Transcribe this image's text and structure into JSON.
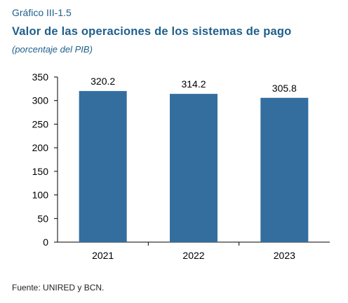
{
  "header": {
    "label": "Gráfico III-1.5",
    "title": "Valor de las operaciones de los sistemas de pago",
    "subtitle": "(porcentaje del PIB)"
  },
  "footer": {
    "source": "Fuente: UNIRED y BCN."
  },
  "colors": {
    "bar": "#336e9f",
    "title": "#1f5f8b",
    "axis": "#000000",
    "text": "#000000"
  },
  "chart_data": {
    "type": "bar",
    "title": "Valor de las operaciones de los sistemas de pago",
    "subtitle": "(porcentaje del PIB)",
    "categories": [
      "2021",
      "2022",
      "2023"
    ],
    "values": [
      320.2,
      314.2,
      305.8
    ],
    "data_labels": [
      "320.2",
      "314.2",
      "305.8"
    ],
    "ylim": [
      0,
      350
    ],
    "yticks": [
      0,
      50,
      100,
      150,
      200,
      250,
      300,
      350
    ],
    "xlabel": "",
    "ylabel": "",
    "grid": false,
    "legend": "none"
  }
}
